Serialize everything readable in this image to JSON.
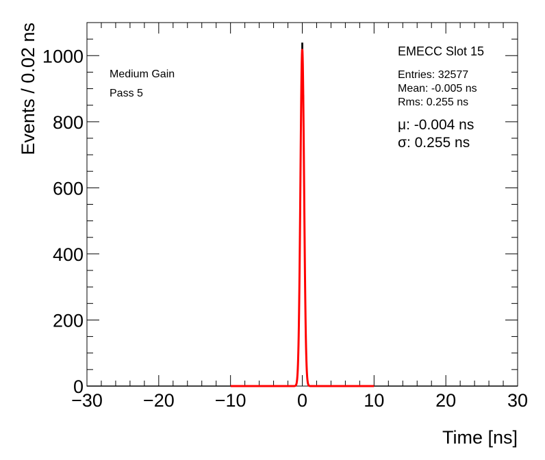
{
  "chart_data": {
    "type": "histogram",
    "xlabel": "Time [ns]",
    "ylabel": "Events / 0.02 ns",
    "xlim": [
      -30,
      30
    ],
    "ylim": [
      0,
      1100
    ],
    "x_ticks": [
      -30,
      -20,
      -10,
      0,
      10,
      20,
      30
    ],
    "y_ticks": [
      0,
      200,
      400,
      600,
      800,
      1000
    ],
    "x_tick_labels": [
      "−30",
      "−20",
      "−10",
      "0",
      "10",
      "20",
      "30"
    ],
    "y_tick_labels": [
      "0",
      "200",
      "400",
      "600",
      "800",
      "1000"
    ],
    "grid": false,
    "annotations": {
      "gain": "Medium Gain",
      "pass": "Pass 5"
    },
    "stats_box": {
      "title": "EMECC Slot 15",
      "entries": "Entries: 32577",
      "mean": "Mean: -0.005 ns",
      "rms": "Rms: 0.255 ns",
      "fit_mu": "μ: -0.004 ns",
      "fit_sigma": "σ: 0.255 ns"
    },
    "histogram": {
      "color": "#000000",
      "bin_width": 0.02,
      "entries": 32577,
      "mean": -0.005,
      "rms": 0.255,
      "peak_x": 0.0,
      "peak_y": 1045
    },
    "fit": {
      "name": "gaussian",
      "color": "#ff0000",
      "mu": -0.004,
      "sigma": 0.255,
      "amplitude": 1020,
      "range": [
        -10,
        10
      ]
    }
  }
}
